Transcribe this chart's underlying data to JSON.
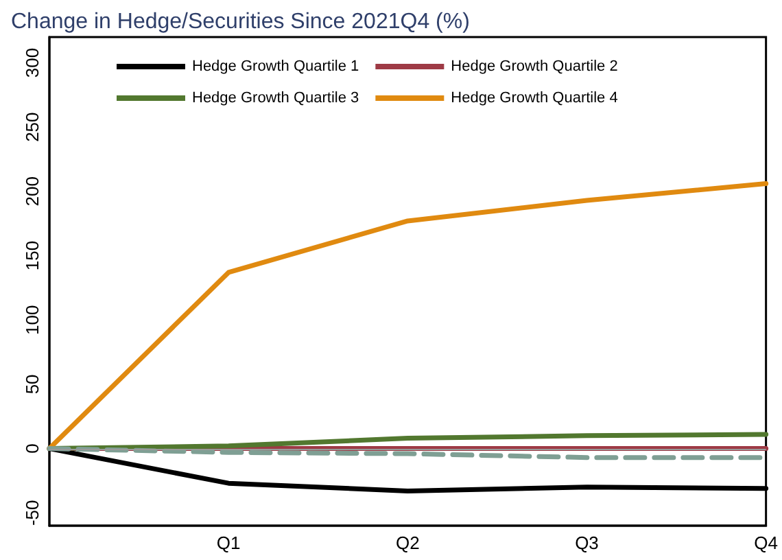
{
  "chart_data": {
    "type": "line",
    "title": "Change in Hedge/Securities Since 2021Q4 (%)",
    "categories": [
      null,
      "Q1",
      "Q2",
      "Q3",
      "Q4"
    ],
    "series": [
      {
        "name": "Hedge Growth Quartile 1",
        "color": "#000000",
        "values": [
          0,
          -27,
          -33,
          -30,
          -31
        ]
      },
      {
        "name": "Hedge Growth Quartile 2",
        "color": "#9e3a45",
        "values": [
          0,
          0,
          0,
          0,
          0
        ]
      },
      {
        "name": "Hedge Growth Quartile 3",
        "color": "#52782f",
        "values": [
          0,
          2,
          8,
          10,
          11
        ]
      },
      {
        "name": "Hedge Growth Quartile 4",
        "color": "#e08a10",
        "values": [
          0,
          137,
          177,
          193,
          206
        ]
      },
      {
        "color": "#7f9f94",
        "line_style": "dashed",
        "values": [
          0,
          -3,
          -4,
          -7,
          -7
        ]
      }
    ],
    "ylim": [
      -60,
      320
    ],
    "yticks": [
      -50,
      0,
      50,
      100,
      150,
      200,
      250,
      300
    ],
    "ref_lines": [
      {
        "axis": "y",
        "value": 0,
        "color": "#999999"
      }
    ],
    "grid": false,
    "legend": "top",
    "marker": "none",
    "line_style": "solid"
  }
}
